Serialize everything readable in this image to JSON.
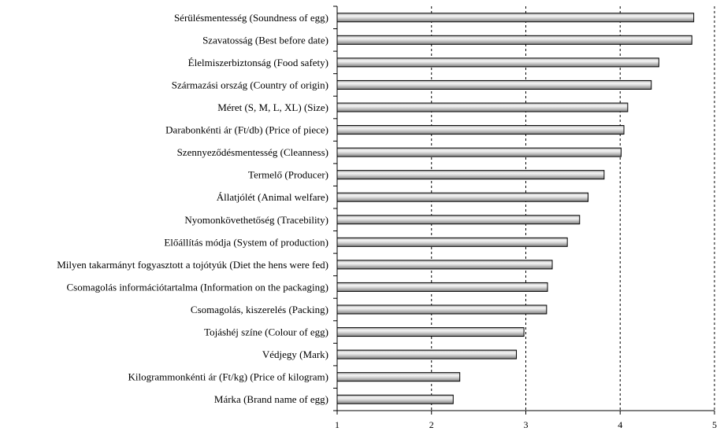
{
  "chart_data": {
    "type": "bar",
    "orientation": "horizontal",
    "categories": [
      "Sérülésmentesség (Soundness of egg)",
      "Szavatosság (Best before date)",
      "Élelmiszerbiztonság (Food safety)",
      "Származási ország (Country of origin)",
      "Méret (S, M, L, XL) (Size)",
      "Darabonkénti ár (Ft/db) (Price of piece)",
      "Szennyeződésmentesség (Cleanness)",
      "Termelő (Producer)",
      "Állatjólét (Animal welfare)",
      "Nyomonkövethetőség (Tracebility)",
      "Előállítás módja (System of production)",
      "Milyen takarmányt fogyasztott a tojótyúk (Diet the hens were fed)",
      "Csomagolás információtartalma (Information on the packaging)",
      "Csomagolás, kiszerelés (Packing)",
      "Tojáshéj színe (Colour of egg)",
      "Védjegy (Mark)",
      "Kilogrammonkénti ár (Ft/kg) (Price of kilogram)",
      "Márka (Brand name of egg)"
    ],
    "values": [
      4.78,
      4.76,
      4.41,
      4.33,
      4.08,
      4.04,
      4.01,
      3.83,
      3.66,
      3.57,
      3.44,
      3.28,
      3.23,
      3.22,
      2.98,
      2.9,
      2.3,
      2.23
    ],
    "xlim": [
      1,
      5
    ],
    "xticks": [
      "1",
      "2",
      "3",
      "4",
      "5"
    ],
    "grid": "vertical-dashed",
    "legend": "none",
    "title": "",
    "xlabel": "",
    "ylabel": ""
  }
}
